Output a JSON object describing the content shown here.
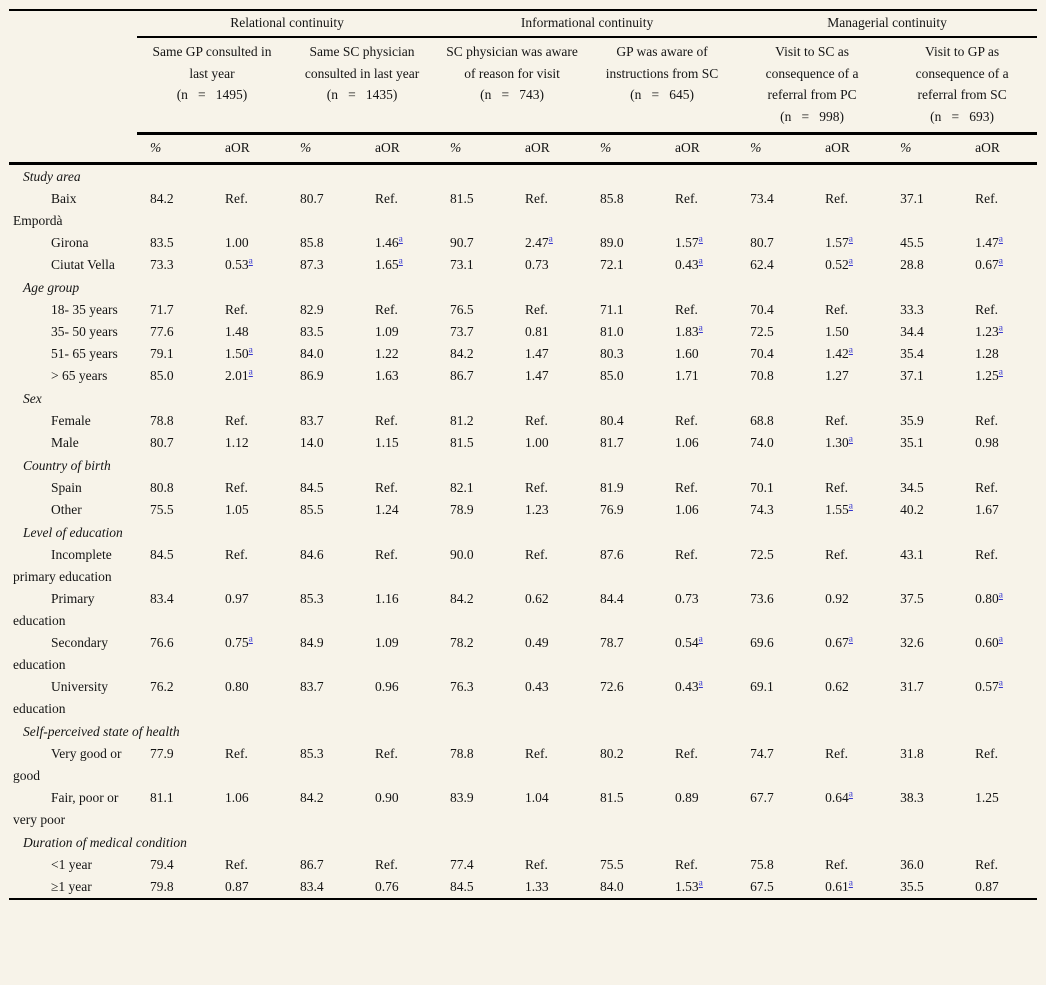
{
  "table": {
    "groups": [
      {
        "label": "Relational continuity"
      },
      {
        "label": "Informational continuity"
      },
      {
        "label": "Managerial continuity"
      }
    ],
    "subcolumns": [
      {
        "title": "Same GP consulted in last year",
        "n": "(n   =   1495)"
      },
      {
        "title": "Same SC physician consulted in last year",
        "n": "(n   =   1435)"
      },
      {
        "title": "SC physician was aware of reason for visit",
        "n": "(n   =   743)"
      },
      {
        "title": "GP was aware of instructions from SC",
        "n": "(n   =   645)"
      },
      {
        "title": "Visit to SC as consequence of a referral from PC",
        "n": "(n   =   998)"
      },
      {
        "title": "Visit to GP as consequence of a referral from SC",
        "n": "(n   =   693)"
      }
    ],
    "measure_headers": [
      "%",
      "aOR"
    ],
    "footnote_marker": "a",
    "sections": [
      {
        "label": "Study area",
        "rows": [
          {
            "label": "Baix Empordà",
            "values": [
              "84.2",
              "Ref.",
              "80.7",
              "Ref.",
              "81.5",
              "Ref.",
              "85.8",
              "Ref.",
              "73.4",
              "Ref.",
              "37.1",
              "Ref."
            ]
          },
          {
            "label": "Girona",
            "values": [
              "83.5",
              "1.00",
              "85.8",
              "1.46^a",
              "90.7",
              "2.47^a",
              "89.0",
              "1.57^a",
              "80.7",
              "1.57^a",
              "45.5",
              "1.47^a"
            ]
          },
          {
            "label": "Ciutat Vella",
            "values": [
              "73.3",
              "0.53^a",
              "87.3",
              "1.65^a",
              "73.1",
              "0.73",
              "72.1",
              "0.43^a",
              "62.4",
              "0.52^a",
              "28.8",
              "0.67^a"
            ]
          }
        ]
      },
      {
        "label": "Age group",
        "rows": [
          {
            "label": "18- 35 years",
            "values": [
              "71.7",
              "Ref.",
              "82.9",
              "Ref.",
              "76.5",
              "Ref.",
              "71.1",
              "Ref.",
              "70.4",
              "Ref.",
              "33.3",
              "Ref."
            ]
          },
          {
            "label": "35- 50 years",
            "values": [
              "77.6",
              "1.48",
              "83.5",
              "1.09",
              "73.7",
              "0.81",
              "81.0",
              "1.83^a",
              "72.5",
              "1.50",
              "34.4",
              "1.23^a"
            ]
          },
          {
            "label": "51- 65 years",
            "values": [
              "79.1",
              "1.50^a",
              "84.0",
              "1.22",
              "84.2",
              "1.47",
              "80.3",
              "1.60",
              "70.4",
              "1.42^a",
              "35.4",
              "1.28"
            ]
          },
          {
            "label": "> 65 years",
            "values": [
              "85.0",
              "2.01^a",
              "86.9",
              "1.63",
              "86.7",
              "1.47",
              "85.0",
              "1.71",
              "70.8",
              "1.27",
              "37.1",
              "1.25^a"
            ]
          }
        ]
      },
      {
        "label": "Sex",
        "rows": [
          {
            "label": "Female",
            "values": [
              "78.8",
              "Ref.",
              "83.7",
              "Ref.",
              "81.2",
              "Ref.",
              "80.4",
              "Ref.",
              "68.8",
              "Ref.",
              "35.9",
              "Ref."
            ]
          },
          {
            "label": "Male",
            "values": [
              "80.7",
              "1.12",
              "14.0",
              "1.15",
              "81.5",
              "1.00",
              "81.7",
              "1.06",
              "74.0",
              "1.30^a",
              "35.1",
              "0.98"
            ]
          }
        ]
      },
      {
        "label": "Country of birth",
        "rows": [
          {
            "label": "Spain",
            "values": [
              "80.8",
              "Ref.",
              "84.5",
              "Ref.",
              "82.1",
              "Ref.",
              "81.9",
              "Ref.",
              "70.1",
              "Ref.",
              "34.5",
              "Ref."
            ]
          },
          {
            "label": "Other",
            "values": [
              "75.5",
              "1.05",
              "85.5",
              "1.24",
              "78.9",
              "1.23",
              "76.9",
              "1.06",
              "74.3",
              "1.55^a",
              "40.2",
              "1.67"
            ]
          }
        ]
      },
      {
        "label": "Level of education",
        "rows": [
          {
            "label": "Incomplete primary education",
            "values": [
              "84.5",
              "Ref.",
              "84.6",
              "Ref.",
              "90.0",
              "Ref.",
              "87.6",
              "Ref.",
              "72.5",
              "Ref.",
              "43.1",
              "Ref."
            ]
          },
          {
            "label": "Primary education",
            "values": [
              "83.4",
              "0.97",
              "85.3",
              "1.16",
              "84.2",
              "0.62",
              "84.4",
              "0.73",
              "73.6",
              "0.92",
              "37.5",
              "0.80^a"
            ]
          },
          {
            "label": "Secondary education",
            "values": [
              "76.6",
              "0.75^a",
              "84.9",
              "1.09",
              "78.2",
              "0.49",
              "78.7",
              "0.54^a",
              "69.6",
              "0.67^a",
              "32.6",
              "0.60^a"
            ]
          },
          {
            "label": "University education",
            "values": [
              "76.2",
              "0.80",
              "83.7",
              "0.96",
              "76.3",
              "0.43",
              "72.6",
              "0.43^a",
              "69.1",
              "0.62",
              "31.7",
              "0.57^a"
            ]
          }
        ]
      },
      {
        "label": "Self-perceived state of health",
        "rows": [
          {
            "label": "Very good or good",
            "values": [
              "77.9",
              "Ref.",
              "85.3",
              "Ref.",
              "78.8",
              "Ref.",
              "80.2",
              "Ref.",
              "74.7",
              "Ref.",
              "31.8",
              "Ref."
            ]
          },
          {
            "label": "Fair, poor or very poor",
            "values": [
              "81.1",
              "1.06",
              "84.2",
              "0.90",
              "83.9",
              "1.04",
              "81.5",
              "0.89",
              "67.7",
              "0.64^a",
              "38.3",
              "1.25"
            ]
          }
        ]
      },
      {
        "label": "Duration of medical condition",
        "rows": [
          {
            "label": "<1 year",
            "values": [
              "79.4",
              "Ref.",
              "86.7",
              "Ref.",
              "77.4",
              "Ref.",
              "75.5",
              "Ref.",
              "75.8",
              "Ref.",
              "36.0",
              "Ref."
            ]
          },
          {
            "label": "≥1 year",
            "values": [
              "79.8",
              "0.87",
              "83.4",
              "0.76",
              "84.5",
              "1.33",
              "84.0",
              "1.53^a",
              "67.5",
              "0.61^a",
              "35.5",
              "0.87"
            ]
          }
        ]
      }
    ]
  },
  "colors": {
    "background": "#f7f3e9",
    "text": "#141414",
    "footnote_link": "#3434cf",
    "border": "#000000"
  }
}
